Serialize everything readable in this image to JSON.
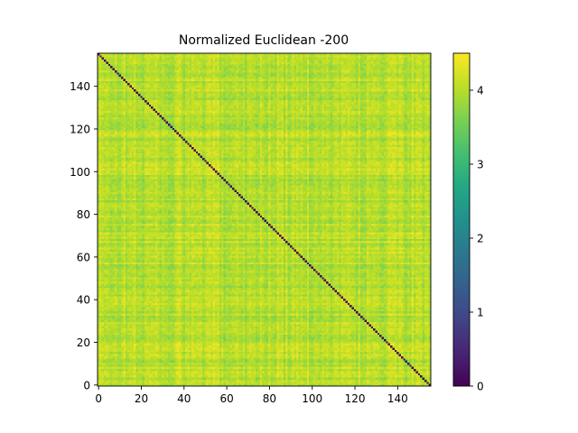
{
  "chart_data": {
    "type": "heatmap",
    "title": "Normalized Euclidean -200",
    "matrix_size": 156,
    "description_of_values": "Symmetric distance matrix; diagonal = 0; off-diagonal values mostly between about 3.5 and 4.4",
    "diagonal_value": 0,
    "offdiagonal_mean": 4.0,
    "offdiagonal_range": [
      3.4,
      4.45
    ],
    "xlim": [
      -0.5,
      155.5
    ],
    "ylim": [
      155.5,
      -0.5
    ],
    "x_ticks": [
      0,
      20,
      40,
      60,
      80,
      100,
      120,
      140
    ],
    "y_ticks": [
      0,
      20,
      40,
      60,
      80,
      100,
      120,
      140
    ],
    "x_tick_labels": [
      "0",
      "20",
      "40",
      "60",
      "80",
      "100",
      "120",
      "140"
    ],
    "y_tick_labels": [
      "0",
      "20",
      "40",
      "60",
      "80",
      "100",
      "120",
      "140"
    ],
    "colorbar": {
      "colormap": "viridis",
      "range": [
        0,
        4.5
      ],
      "ticks": [
        0,
        1,
        2,
        3,
        4
      ],
      "tick_labels": [
        "0",
        "1",
        "2",
        "3",
        "4"
      ]
    },
    "grid": false,
    "legend": "none"
  }
}
